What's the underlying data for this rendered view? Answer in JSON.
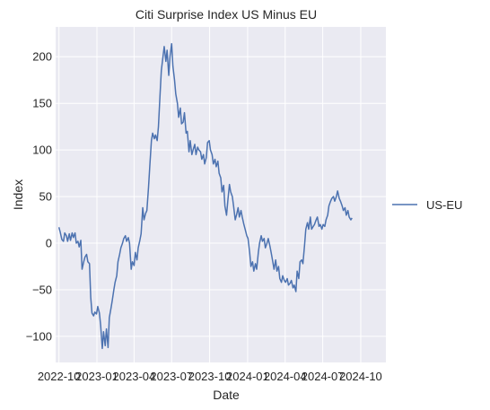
{
  "chart_data": {
    "type": "line",
    "title": "Citi Surprise Index US Minus EU",
    "xlabel": "Date",
    "ylabel": "Index",
    "ylim": [
      -128,
      232
    ],
    "xlim": [
      "2022-09-23",
      "2024-12-01"
    ],
    "yticks": [
      -100,
      -50,
      0,
      50,
      100,
      150,
      200
    ],
    "xticks": [
      {
        "date": "2022-10-01",
        "label": "2022-10"
      },
      {
        "date": "2023-01-01",
        "label": "2023-01"
      },
      {
        "date": "2023-04-01",
        "label": "2023-04"
      },
      {
        "date": "2023-07-01",
        "label": "2023-07"
      },
      {
        "date": "2023-10-01",
        "label": "2023-10"
      },
      {
        "date": "2024-01-01",
        "label": "2024-01"
      },
      {
        "date": "2024-04-01",
        "label": "2024-04"
      },
      {
        "date": "2024-07-01",
        "label": "2024-07"
      },
      {
        "date": "2024-10-01",
        "label": "2024-10"
      }
    ],
    "grid": true,
    "legend_position": "right-outside",
    "colors": {
      "line": "#4c72b0",
      "plot_bg": "#eaeaf2",
      "grid": "#ffffff"
    },
    "series": [
      {
        "name": "US-EU",
        "points": [
          [
            "2022-10-01",
            17
          ],
          [
            "2022-10-04",
            12
          ],
          [
            "2022-10-08",
            4
          ],
          [
            "2022-10-12",
            2
          ],
          [
            "2022-10-15",
            11
          ],
          [
            "2022-10-19",
            8
          ],
          [
            "2022-10-22",
            2
          ],
          [
            "2022-10-26",
            10
          ],
          [
            "2022-10-29",
            3
          ],
          [
            "2022-11-02",
            11
          ],
          [
            "2022-11-05",
            6
          ],
          [
            "2022-11-09",
            11
          ],
          [
            "2022-11-12",
            0
          ],
          [
            "2022-11-16",
            2
          ],
          [
            "2022-11-19",
            -4
          ],
          [
            "2022-11-23",
            3
          ],
          [
            "2022-11-26",
            -28
          ],
          [
            "2022-11-30",
            -20
          ],
          [
            "2022-12-03",
            -15
          ],
          [
            "2022-12-07",
            -12
          ],
          [
            "2022-12-10",
            -20
          ],
          [
            "2022-12-14",
            -22
          ],
          [
            "2022-12-17",
            -58
          ],
          [
            "2022-12-20",
            -75
          ],
          [
            "2022-12-24",
            -78
          ],
          [
            "2022-12-27",
            -74
          ],
          [
            "2022-12-31",
            -76
          ],
          [
            "2023-01-03",
            -68
          ],
          [
            "2023-01-07",
            -75
          ],
          [
            "2023-01-10",
            -88
          ],
          [
            "2023-01-14",
            -113
          ],
          [
            "2023-01-17",
            -95
          ],
          [
            "2023-01-21",
            -110
          ],
          [
            "2023-01-24",
            -92
          ],
          [
            "2023-01-28",
            -112
          ],
          [
            "2023-01-31",
            -80
          ],
          [
            "2023-02-04",
            -70
          ],
          [
            "2023-02-07",
            -62
          ],
          [
            "2023-02-11",
            -50
          ],
          [
            "2023-02-14",
            -42
          ],
          [
            "2023-02-18",
            -35
          ],
          [
            "2023-02-21",
            -20
          ],
          [
            "2023-02-25",
            -12
          ],
          [
            "2023-02-28",
            -5
          ],
          [
            "2023-03-04",
            0
          ],
          [
            "2023-03-07",
            5
          ],
          [
            "2023-03-11",
            8
          ],
          [
            "2023-03-14",
            2
          ],
          [
            "2023-03-18",
            6
          ],
          [
            "2023-03-21",
            0
          ],
          [
            "2023-03-25",
            -28
          ],
          [
            "2023-03-28",
            -20
          ],
          [
            "2023-04-01",
            -24
          ],
          [
            "2023-04-04",
            -10
          ],
          [
            "2023-04-08",
            -18
          ],
          [
            "2023-04-11",
            -5
          ],
          [
            "2023-04-15",
            3
          ],
          [
            "2023-04-18",
            10
          ],
          [
            "2023-04-22",
            38
          ],
          [
            "2023-04-25",
            25
          ],
          [
            "2023-04-29",
            32
          ],
          [
            "2023-05-02",
            35
          ],
          [
            "2023-05-06",
            60
          ],
          [
            "2023-05-09",
            82
          ],
          [
            "2023-05-13",
            110
          ],
          [
            "2023-05-16",
            118
          ],
          [
            "2023-05-20",
            112
          ],
          [
            "2023-05-23",
            116
          ],
          [
            "2023-05-27",
            110
          ],
          [
            "2023-05-30",
            125
          ],
          [
            "2023-06-03",
            160
          ],
          [
            "2023-06-06",
            185
          ],
          [
            "2023-06-10",
            200
          ],
          [
            "2023-06-13",
            211
          ],
          [
            "2023-06-17",
            195
          ],
          [
            "2023-06-20",
            207
          ],
          [
            "2023-06-24",
            180
          ],
          [
            "2023-06-27",
            200
          ],
          [
            "2023-07-01",
            214
          ],
          [
            "2023-07-04",
            190
          ],
          [
            "2023-07-08",
            175
          ],
          [
            "2023-07-11",
            160
          ],
          [
            "2023-07-15",
            150
          ],
          [
            "2023-07-18",
            135
          ],
          [
            "2023-07-22",
            145
          ],
          [
            "2023-07-25",
            128
          ],
          [
            "2023-07-29",
            130
          ],
          [
            "2023-08-01",
            140
          ],
          [
            "2023-08-05",
            118
          ],
          [
            "2023-08-08",
            120
          ],
          [
            "2023-08-12",
            98
          ],
          [
            "2023-08-15",
            110
          ],
          [
            "2023-08-19",
            95
          ],
          [
            "2023-08-22",
            100
          ],
          [
            "2023-08-26",
            106
          ],
          [
            "2023-08-29",
            95
          ],
          [
            "2023-09-02",
            103
          ],
          [
            "2023-09-05",
            100
          ],
          [
            "2023-09-09",
            98
          ],
          [
            "2023-09-12",
            90
          ],
          [
            "2023-09-16",
            95
          ],
          [
            "2023-09-19",
            85
          ],
          [
            "2023-09-23",
            92
          ],
          [
            "2023-09-26",
            108
          ],
          [
            "2023-09-30",
            110
          ],
          [
            "2023-10-03",
            100
          ],
          [
            "2023-10-07",
            95
          ],
          [
            "2023-10-10",
            85
          ],
          [
            "2023-10-14",
            90
          ],
          [
            "2023-10-17",
            82
          ],
          [
            "2023-10-21",
            88
          ],
          [
            "2023-10-24",
            75
          ],
          [
            "2023-10-28",
            70
          ],
          [
            "2023-10-31",
            55
          ],
          [
            "2023-11-04",
            62
          ],
          [
            "2023-11-07",
            40
          ],
          [
            "2023-11-11",
            30
          ],
          [
            "2023-11-14",
            45
          ],
          [
            "2023-11-18",
            63
          ],
          [
            "2023-11-21",
            55
          ],
          [
            "2023-11-25",
            50
          ],
          [
            "2023-11-28",
            40
          ],
          [
            "2023-12-02",
            25
          ],
          [
            "2023-12-05",
            30
          ],
          [
            "2023-12-09",
            38
          ],
          [
            "2023-12-12",
            28
          ],
          [
            "2023-12-16",
            35
          ],
          [
            "2023-12-19",
            28
          ],
          [
            "2023-12-23",
            20
          ],
          [
            "2023-12-26",
            15
          ],
          [
            "2023-12-30",
            8
          ],
          [
            "2024-01-02",
            5
          ],
          [
            "2024-01-06",
            -10
          ],
          [
            "2024-01-09",
            -25
          ],
          [
            "2024-01-13",
            -20
          ],
          [
            "2024-01-16",
            -30
          ],
          [
            "2024-01-20",
            -22
          ],
          [
            "2024-01-23",
            -28
          ],
          [
            "2024-01-27",
            -10
          ],
          [
            "2024-01-30",
            0
          ],
          [
            "2024-02-03",
            8
          ],
          [
            "2024-02-06",
            2
          ],
          [
            "2024-02-10",
            5
          ],
          [
            "2024-02-13",
            -5
          ],
          [
            "2024-02-17",
            0
          ],
          [
            "2024-02-20",
            5
          ],
          [
            "2024-02-24",
            -3
          ],
          [
            "2024-02-27",
            -10
          ],
          [
            "2024-03-02",
            -20
          ],
          [
            "2024-03-05",
            -28
          ],
          [
            "2024-03-09",
            -18
          ],
          [
            "2024-03-12",
            -30
          ],
          [
            "2024-03-16",
            -25
          ],
          [
            "2024-03-19",
            -38
          ],
          [
            "2024-03-23",
            -42
          ],
          [
            "2024-03-26",
            -35
          ],
          [
            "2024-03-30",
            -40
          ],
          [
            "2024-04-02",
            -42
          ],
          [
            "2024-04-06",
            -38
          ],
          [
            "2024-04-09",
            -45
          ],
          [
            "2024-04-13",
            -43
          ],
          [
            "2024-04-16",
            -40
          ],
          [
            "2024-04-20",
            -48
          ],
          [
            "2024-04-23",
            -45
          ],
          [
            "2024-04-27",
            -52
          ],
          [
            "2024-04-30",
            -30
          ],
          [
            "2024-05-04",
            -38
          ],
          [
            "2024-05-07",
            -20
          ],
          [
            "2024-05-11",
            -18
          ],
          [
            "2024-05-14",
            -22
          ],
          [
            "2024-05-18",
            -2
          ],
          [
            "2024-05-21",
            15
          ],
          [
            "2024-05-25",
            22
          ],
          [
            "2024-05-28",
            15
          ],
          [
            "2024-06-01",
            28
          ],
          [
            "2024-06-04",
            15
          ],
          [
            "2024-06-08",
            18
          ],
          [
            "2024-06-11",
            20
          ],
          [
            "2024-06-15",
            25
          ],
          [
            "2024-06-18",
            28
          ],
          [
            "2024-06-22",
            18
          ],
          [
            "2024-06-25",
            20
          ],
          [
            "2024-06-29",
            15
          ],
          [
            "2024-07-02",
            20
          ],
          [
            "2024-07-06",
            18
          ],
          [
            "2024-07-09",
            25
          ],
          [
            "2024-07-13",
            30
          ],
          [
            "2024-07-16",
            40
          ],
          [
            "2024-07-20",
            45
          ],
          [
            "2024-07-23",
            48
          ],
          [
            "2024-07-27",
            50
          ],
          [
            "2024-07-30",
            45
          ],
          [
            "2024-08-03",
            50
          ],
          [
            "2024-08-06",
            56
          ],
          [
            "2024-08-10",
            48
          ],
          [
            "2024-08-13",
            45
          ],
          [
            "2024-08-17",
            40
          ],
          [
            "2024-08-20",
            35
          ],
          [
            "2024-08-24",
            38
          ],
          [
            "2024-08-27",
            30
          ],
          [
            "2024-08-31",
            35
          ],
          [
            "2024-09-03",
            28
          ],
          [
            "2024-09-07",
            25
          ],
          [
            "2024-09-10",
            27
          ]
        ]
      }
    ]
  }
}
